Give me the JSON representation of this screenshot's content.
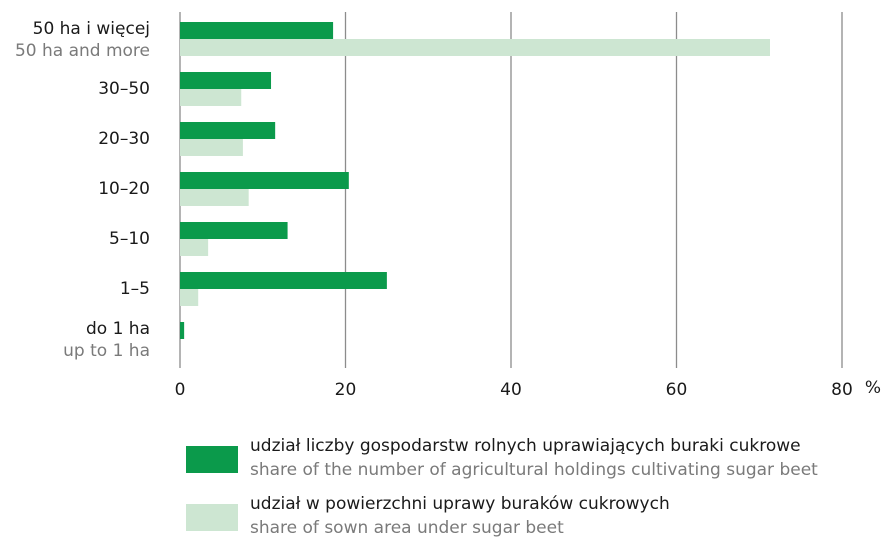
{
  "chart_data": {
    "type": "barh",
    "categories": [
      "50 ha i więcej",
      "30–50",
      "20–30",
      "10–20",
      "5–10",
      "1–5",
      "do 1 ha"
    ],
    "categories_en": [
      "50 ha and more",
      null,
      null,
      null,
      null,
      null,
      "up to 1 ha"
    ],
    "series": [
      {
        "name": "udział liczby gospodarstw rolnych uprawiających buraki cukrowe",
        "name_en": "share of the number of agricultural holdings cultivating sugar beet",
        "color": "#0b9a4b",
        "values": [
          18.5,
          11.0,
          11.5,
          20.4,
          13.0,
          25.0,
          0.5
        ]
      },
      {
        "name": "udział w powierzchni uprawy buraków cukrowych",
        "name_en": "share of sown area under sugar beet",
        "color": "#cde6d2",
        "values": [
          71.3,
          7.4,
          7.6,
          8.3,
          3.4,
          2.2,
          0
        ]
      }
    ],
    "xlim": [
      0,
      80
    ],
    "xticks": [
      0,
      20,
      40,
      60,
      80
    ],
    "x_unit": "%",
    "grid": true
  }
}
